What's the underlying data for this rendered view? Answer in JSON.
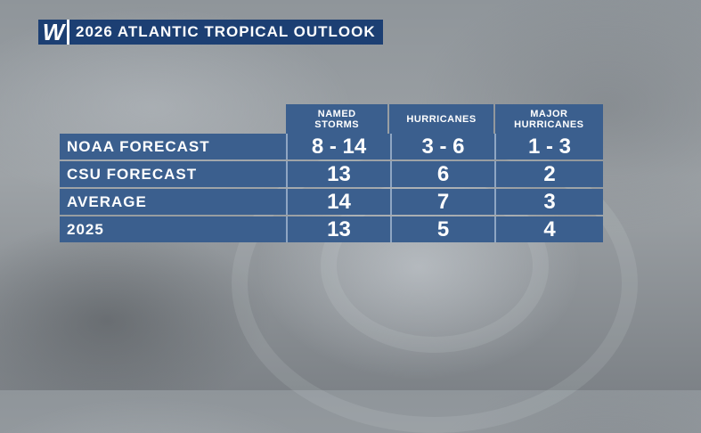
{
  "header": {
    "logo_text": "W",
    "title": "2026 ATLANTIC TROPICAL OUTLOOK"
  },
  "table": {
    "columns": [
      "NAMED STORMS",
      "HURRICANES",
      "MAJOR HURRICANES"
    ],
    "rows": [
      {
        "label": "NOAA FORECAST",
        "values": [
          "8 - 14",
          "3 - 6",
          "1 - 3"
        ]
      },
      {
        "label": "CSU FORECAST",
        "values": [
          "13",
          "6",
          "2"
        ]
      },
      {
        "label": "AVERAGE",
        "values": [
          "14",
          "7",
          "3"
        ]
      },
      {
        "label": "2025",
        "values": [
          "13",
          "5",
          "4"
        ]
      }
    ]
  },
  "colors": {
    "brand": "#1c3f73",
    "table_bg": "#3b5f8e",
    "text": "#ffffff"
  }
}
